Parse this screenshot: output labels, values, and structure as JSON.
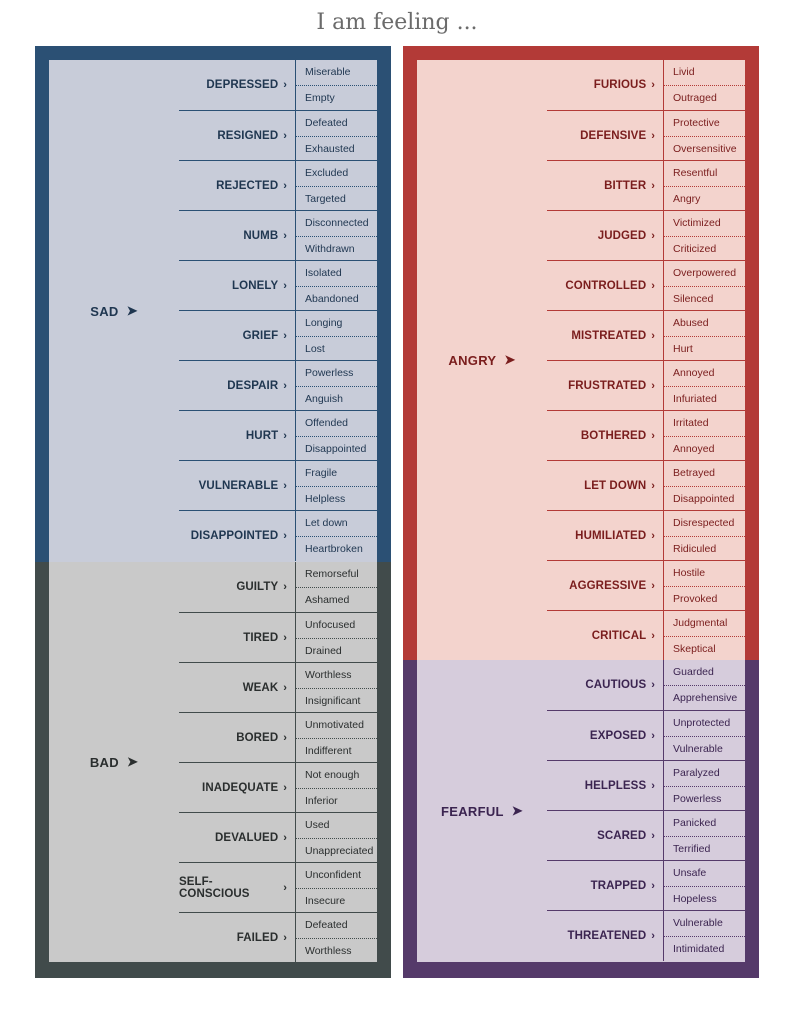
{
  "title": "I am feeling ...",
  "colors": {
    "sad_border": "#2b5074",
    "bad_border": "#414b4b",
    "angry_border": "#b33a37",
    "fearful_border": "#553a6a",
    "sad_fill": "#c8ccd9",
    "bad_fill": "#c9c9c9",
    "angry_fill": "#f3d3cd",
    "fearful_fill": "#d6ccdc"
  },
  "chevron": "›",
  "group_chevron": "➤",
  "left": [
    {
      "label": "SAD",
      "secondary": [
        {
          "label": "DEPRESSED",
          "tertiary": [
            "Miserable",
            "Empty"
          ]
        },
        {
          "label": "RESIGNED",
          "tertiary": [
            "Defeated",
            "Exhausted"
          ]
        },
        {
          "label": "REJECTED",
          "tertiary": [
            "Excluded",
            "Targeted"
          ]
        },
        {
          "label": "NUMB",
          "tertiary": [
            "Disconnected",
            "Withdrawn"
          ]
        },
        {
          "label": "LONELY",
          "tertiary": [
            "Isolated",
            "Abandoned"
          ]
        },
        {
          "label": "GRIEF",
          "tertiary": [
            "Longing",
            "Lost"
          ]
        },
        {
          "label": "DESPAIR",
          "tertiary": [
            "Powerless",
            "Anguish"
          ]
        },
        {
          "label": "HURT",
          "tertiary": [
            "Offended",
            "Disappointed"
          ]
        },
        {
          "label": "VULNERABLE",
          "tertiary": [
            "Fragile",
            "Helpless"
          ]
        },
        {
          "label": "DISAPPOINTED",
          "tertiary": [
            "Let down",
            "Heartbroken"
          ]
        }
      ]
    },
    {
      "label": "BAD",
      "secondary": [
        {
          "label": "GUILTY",
          "tertiary": [
            "Remorseful",
            "Ashamed"
          ]
        },
        {
          "label": "TIRED",
          "tertiary": [
            "Unfocused",
            "Drained"
          ]
        },
        {
          "label": "WEAK",
          "tertiary": [
            "Worthless",
            "Insignificant"
          ]
        },
        {
          "label": "BORED",
          "tertiary": [
            "Unmotivated",
            "Indifferent"
          ]
        },
        {
          "label": "INADEQUATE",
          "tertiary": [
            "Not enough",
            "Inferior"
          ]
        },
        {
          "label": "DEVALUED",
          "tertiary": [
            "Used",
            "Unappreciated"
          ]
        },
        {
          "label": "SELF-CONSCIOUS",
          "tertiary": [
            "Unconfident",
            "Insecure"
          ]
        },
        {
          "label": "FAILED",
          "tertiary": [
            "Defeated",
            "Worthless"
          ]
        }
      ]
    }
  ],
  "right": [
    {
      "label": "ANGRY",
      "secondary": [
        {
          "label": "FURIOUS",
          "tertiary": [
            "Livid",
            "Outraged"
          ]
        },
        {
          "label": "DEFENSIVE",
          "tertiary": [
            "Protective",
            "Oversensitive"
          ]
        },
        {
          "label": "BITTER",
          "tertiary": [
            "Resentful",
            "Angry"
          ]
        },
        {
          "label": "JUDGED",
          "tertiary": [
            "Victimized",
            "Criticized"
          ]
        },
        {
          "label": "CONTROLLED",
          "tertiary": [
            "Overpowered",
            "Silenced"
          ]
        },
        {
          "label": "MISTREATED",
          "tertiary": [
            "Abused",
            "Hurt"
          ]
        },
        {
          "label": "FRUSTRATED",
          "tertiary": [
            "Annoyed",
            "Infuriated"
          ]
        },
        {
          "label": "BOTHERED",
          "tertiary": [
            "Irritated",
            "Annoyed"
          ]
        },
        {
          "label": "LET DOWN",
          "tertiary": [
            "Betrayed",
            "Disappointed"
          ]
        },
        {
          "label": "HUMILIATED",
          "tertiary": [
            "Disrespected",
            "Ridiculed"
          ]
        },
        {
          "label": "AGGRESSIVE",
          "tertiary": [
            "Hostile",
            "Provoked"
          ]
        },
        {
          "label": "CRITICAL",
          "tertiary": [
            "Judgmental",
            "Skeptical"
          ]
        }
      ]
    },
    {
      "label": "FEARFUL",
      "secondary": [
        {
          "label": "CAUTIOUS",
          "tertiary": [
            "Guarded",
            "Apprehensive"
          ]
        },
        {
          "label": "EXPOSED",
          "tertiary": [
            "Unprotected",
            "Vulnerable"
          ]
        },
        {
          "label": "HELPLESS",
          "tertiary": [
            "Paralyzed",
            "Powerless"
          ]
        },
        {
          "label": "SCARED",
          "tertiary": [
            "Panicked",
            "Terrified"
          ]
        },
        {
          "label": "TRAPPED",
          "tertiary": [
            "Unsafe",
            "Hopeless"
          ]
        },
        {
          "label": "THREATENED",
          "tertiary": [
            "Vulnerable",
            "Intimidated"
          ]
        }
      ]
    }
  ]
}
